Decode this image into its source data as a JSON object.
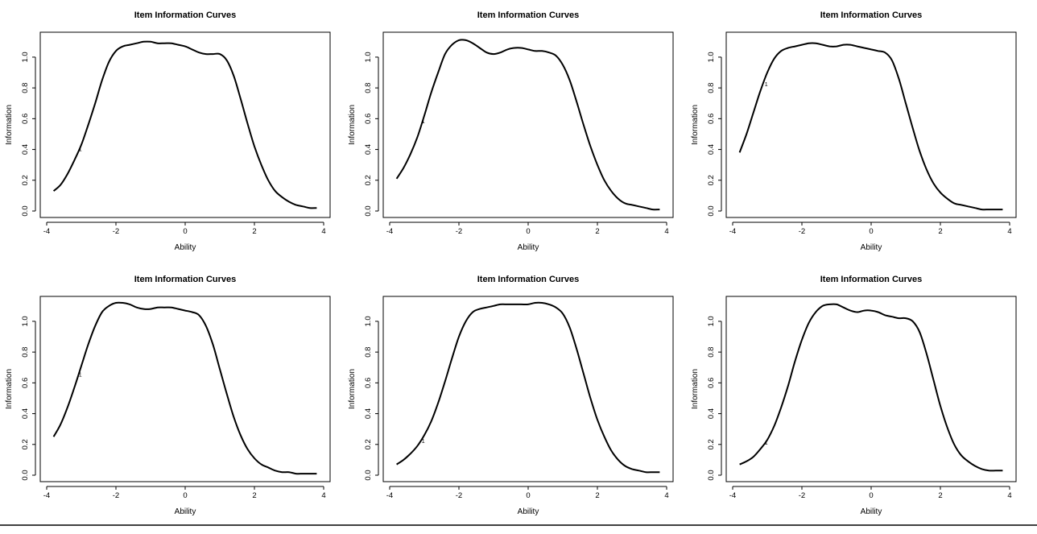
{
  "chart_data": [
    {
      "type": "line",
      "title": "Item Information Curves",
      "xlabel": "Ability",
      "ylabel": "Information",
      "xlim": [
        -4,
        4
      ],
      "ylim": [
        0,
        1.12
      ],
      "x_ticks": [
        "-4",
        "-2",
        "0",
        "2",
        "4"
      ],
      "y_ticks": [
        "0.0",
        "0.2",
        "0.4",
        "0.6",
        "0.8",
        "1.0"
      ],
      "grid": false,
      "series": [
        {
          "label": "1",
          "label_at": [
            -3.1,
            0.39
          ],
          "x": [
            -3.8,
            -3.6,
            -3.4,
            -3.2,
            -3.0,
            -2.8,
            -2.6,
            -2.4,
            -2.2,
            -2.0,
            -1.8,
            -1.6,
            -1.4,
            -1.2,
            -1.0,
            -0.8,
            -0.6,
            -0.4,
            -0.2,
            0.0,
            0.2,
            0.4,
            0.6,
            0.8,
            1.0,
            1.2,
            1.4,
            1.6,
            1.8,
            2.0,
            2.2,
            2.4,
            2.6,
            2.8,
            3.0,
            3.2,
            3.4,
            3.6,
            3.8
          ],
          "y": [
            0.13,
            0.17,
            0.24,
            0.33,
            0.43,
            0.56,
            0.7,
            0.85,
            0.97,
            1.04,
            1.07,
            1.08,
            1.09,
            1.1,
            1.1,
            1.09,
            1.09,
            1.09,
            1.08,
            1.07,
            1.05,
            1.03,
            1.02,
            1.02,
            1.02,
            0.98,
            0.88,
            0.73,
            0.57,
            0.42,
            0.3,
            0.2,
            0.13,
            0.09,
            0.06,
            0.04,
            0.03,
            0.02,
            0.02
          ]
        }
      ]
    },
    {
      "type": "line",
      "title": "Item Information Curves",
      "xlabel": "Ability",
      "ylabel": "Information",
      "xlim": [
        -4,
        4
      ],
      "ylim": [
        0,
        1.12
      ],
      "x_ticks": [
        "-4",
        "-2",
        "0",
        "2",
        "4"
      ],
      "y_ticks": [
        "0.0",
        "0.2",
        "0.4",
        "0.6",
        "0.8",
        "1.0"
      ],
      "grid": false,
      "series": [
        {
          "label": "1",
          "label_at": [
            -3.1,
            0.57
          ],
          "x": [
            -3.8,
            -3.6,
            -3.4,
            -3.2,
            -3.0,
            -2.8,
            -2.6,
            -2.4,
            -2.2,
            -2.0,
            -1.8,
            -1.6,
            -1.4,
            -1.2,
            -1.0,
            -0.8,
            -0.6,
            -0.4,
            -0.2,
            0.0,
            0.2,
            0.4,
            0.6,
            0.8,
            1.0,
            1.2,
            1.4,
            1.6,
            1.8,
            2.0,
            2.2,
            2.4,
            2.6,
            2.8,
            3.0,
            3.2,
            3.4,
            3.6,
            3.8
          ],
          "y": [
            0.21,
            0.28,
            0.37,
            0.48,
            0.62,
            0.77,
            0.9,
            1.02,
            1.08,
            1.11,
            1.11,
            1.09,
            1.06,
            1.03,
            1.02,
            1.03,
            1.05,
            1.06,
            1.06,
            1.05,
            1.04,
            1.04,
            1.03,
            1.01,
            0.95,
            0.85,
            0.71,
            0.56,
            0.42,
            0.3,
            0.2,
            0.13,
            0.08,
            0.05,
            0.04,
            0.03,
            0.02,
            0.01,
            0.01
          ]
        }
      ]
    },
    {
      "type": "line",
      "title": "Item Information Curves",
      "xlabel": "Ability",
      "ylabel": "Information",
      "xlim": [
        -4,
        4
      ],
      "ylim": [
        0,
        1.12
      ],
      "x_ticks": [
        "-4",
        "-2",
        "0",
        "2",
        "4"
      ],
      "y_ticks": [
        "0.0",
        "0.2",
        "0.4",
        "0.6",
        "0.8",
        "1.0"
      ],
      "grid": false,
      "series": [
        {
          "label": "1",
          "label_at": [
            -3.1,
            0.81
          ],
          "x": [
            -3.8,
            -3.6,
            -3.4,
            -3.2,
            -3.0,
            -2.8,
            -2.6,
            -2.4,
            -2.2,
            -2.0,
            -1.8,
            -1.6,
            -1.4,
            -1.2,
            -1.0,
            -0.8,
            -0.6,
            -0.4,
            -0.2,
            0.0,
            0.2,
            0.4,
            0.6,
            0.8,
            1.0,
            1.2,
            1.4,
            1.6,
            1.8,
            2.0,
            2.2,
            2.4,
            2.6,
            2.8,
            3.0,
            3.2,
            3.4,
            3.6,
            3.8
          ],
          "y": [
            0.38,
            0.5,
            0.64,
            0.78,
            0.9,
            0.99,
            1.04,
            1.06,
            1.07,
            1.08,
            1.09,
            1.09,
            1.08,
            1.07,
            1.07,
            1.08,
            1.08,
            1.07,
            1.06,
            1.05,
            1.04,
            1.03,
            0.98,
            0.86,
            0.7,
            0.54,
            0.39,
            0.27,
            0.18,
            0.12,
            0.08,
            0.05,
            0.04,
            0.03,
            0.02,
            0.01,
            0.01,
            0.01,
            0.01
          ]
        }
      ]
    },
    {
      "type": "line",
      "title": "Item Information Curves",
      "xlabel": "Ability",
      "ylabel": "Information",
      "xlim": [
        -4,
        4
      ],
      "ylim": [
        0,
        1.12
      ],
      "x_ticks": [
        "-4",
        "-2",
        "0",
        "2",
        "4"
      ],
      "y_ticks": [
        "0.0",
        "0.2",
        "0.4",
        "0.6",
        "0.8",
        "1.0"
      ],
      "grid": false,
      "series": [
        {
          "label": "1",
          "label_at": [
            -3.1,
            0.64
          ],
          "x": [
            -3.8,
            -3.6,
            -3.4,
            -3.2,
            -3.0,
            -2.8,
            -2.6,
            -2.4,
            -2.2,
            -2.0,
            -1.8,
            -1.6,
            -1.4,
            -1.2,
            -1.0,
            -0.8,
            -0.6,
            -0.4,
            -0.2,
            0.0,
            0.2,
            0.4,
            0.6,
            0.8,
            1.0,
            1.2,
            1.4,
            1.6,
            1.8,
            2.0,
            2.2,
            2.4,
            2.6,
            2.8,
            3.0,
            3.2,
            3.4,
            3.6,
            3.8
          ],
          "y": [
            0.25,
            0.33,
            0.44,
            0.57,
            0.71,
            0.85,
            0.97,
            1.06,
            1.1,
            1.12,
            1.12,
            1.11,
            1.09,
            1.08,
            1.08,
            1.09,
            1.09,
            1.09,
            1.08,
            1.07,
            1.06,
            1.04,
            0.97,
            0.85,
            0.69,
            0.53,
            0.38,
            0.26,
            0.17,
            0.11,
            0.07,
            0.05,
            0.03,
            0.02,
            0.02,
            0.01,
            0.01,
            0.01,
            0.01
          ]
        }
      ]
    },
    {
      "type": "line",
      "title": "Item Information Curves",
      "xlabel": "Ability",
      "ylabel": "Information",
      "xlim": [
        -4,
        4
      ],
      "ylim": [
        0,
        1.12
      ],
      "x_ticks": [
        "-4",
        "-2",
        "0",
        "2",
        "4"
      ],
      "y_ticks": [
        "0.0",
        "0.2",
        "0.4",
        "0.6",
        "0.8",
        "1.0"
      ],
      "grid": false,
      "series": [
        {
          "label": "1",
          "label_at": [
            -3.1,
            0.21
          ],
          "x": [
            -3.8,
            -3.6,
            -3.4,
            -3.2,
            -3.0,
            -2.8,
            -2.6,
            -2.4,
            -2.2,
            -2.0,
            -1.8,
            -1.6,
            -1.4,
            -1.2,
            -1.0,
            -0.8,
            -0.6,
            -0.4,
            -0.2,
            0.0,
            0.2,
            0.4,
            0.6,
            0.8,
            1.0,
            1.2,
            1.4,
            1.6,
            1.8,
            2.0,
            2.2,
            2.4,
            2.6,
            2.8,
            3.0,
            3.2,
            3.4,
            3.6,
            3.8
          ],
          "y": [
            0.07,
            0.1,
            0.14,
            0.19,
            0.26,
            0.35,
            0.47,
            0.61,
            0.76,
            0.9,
            1.0,
            1.06,
            1.08,
            1.09,
            1.1,
            1.11,
            1.11,
            1.11,
            1.11,
            1.11,
            1.12,
            1.12,
            1.11,
            1.09,
            1.05,
            0.96,
            0.82,
            0.66,
            0.5,
            0.36,
            0.25,
            0.16,
            0.1,
            0.06,
            0.04,
            0.03,
            0.02,
            0.02,
            0.02
          ]
        }
      ]
    },
    {
      "type": "line",
      "title": "Item Information Curves",
      "xlabel": "Ability",
      "ylabel": "Information",
      "xlim": [
        -4,
        4
      ],
      "ylim": [
        0,
        1.12
      ],
      "x_ticks": [
        "-4",
        "-2",
        "0",
        "2",
        "4"
      ],
      "y_ticks": [
        "0.0",
        "0.2",
        "0.4",
        "0.6",
        "0.8",
        "1.0"
      ],
      "grid": false,
      "series": [
        {
          "label": "1",
          "label_at": [
            -3.1,
            0.2
          ],
          "x": [
            -3.8,
            -3.6,
            -3.4,
            -3.2,
            -3.0,
            -2.8,
            -2.6,
            -2.4,
            -2.2,
            -2.0,
            -1.8,
            -1.6,
            -1.4,
            -1.2,
            -1.0,
            -0.8,
            -0.6,
            -0.4,
            -0.2,
            0.0,
            0.2,
            0.4,
            0.6,
            0.8,
            1.0,
            1.2,
            1.4,
            1.6,
            1.8,
            2.0,
            2.2,
            2.4,
            2.6,
            2.8,
            3.0,
            3.2,
            3.4,
            3.6,
            3.8
          ],
          "y": [
            0.07,
            0.09,
            0.12,
            0.17,
            0.23,
            0.32,
            0.44,
            0.58,
            0.74,
            0.88,
            0.99,
            1.06,
            1.1,
            1.11,
            1.11,
            1.09,
            1.07,
            1.06,
            1.07,
            1.07,
            1.06,
            1.04,
            1.03,
            1.02,
            1.02,
            1.0,
            0.93,
            0.79,
            0.62,
            0.45,
            0.31,
            0.2,
            0.13,
            0.09,
            0.06,
            0.04,
            0.03,
            0.03,
            0.03
          ]
        }
      ]
    }
  ]
}
